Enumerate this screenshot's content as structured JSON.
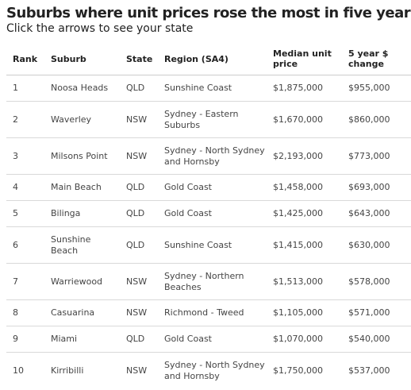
{
  "title": "Suburbs where unit prices rose the most in five years",
  "subtitle": "Click the arrows to see your state",
  "table": {
    "headers": {
      "rank": "Rank",
      "suburb": "Suburb",
      "state": "State",
      "region": "Region (SA4)",
      "price": "Median unit price",
      "change": "5 year $ change"
    },
    "rows": [
      {
        "rank": "1",
        "suburb": "Noosa Heads",
        "state": "QLD",
        "region": "Sunshine Coast",
        "price": "$1,875,000",
        "change": "$955,000"
      },
      {
        "rank": "2",
        "suburb": "Waverley",
        "state": "NSW",
        "region": "Sydney - Eastern Suburbs",
        "price": "$1,670,000",
        "change": "$860,000"
      },
      {
        "rank": "3",
        "suburb": "Milsons Point",
        "state": "NSW",
        "region": "Sydney - North Sydney and Hornsby",
        "price": "$2,193,000",
        "change": "$773,000"
      },
      {
        "rank": "4",
        "suburb": "Main Beach",
        "state": "QLD",
        "region": "Gold Coast",
        "price": "$1,458,000",
        "change": "$693,000"
      },
      {
        "rank": "5",
        "suburb": "Bilinga",
        "state": "QLD",
        "region": "Gold Coast",
        "price": "$1,425,000",
        "change": "$643,000"
      },
      {
        "rank": "6",
        "suburb": "Sunshine Beach",
        "state": "QLD",
        "region": "Sunshine Coast",
        "price": "$1,415,000",
        "change": "$630,000"
      },
      {
        "rank": "7",
        "suburb": "Warriewood",
        "state": "NSW",
        "region": "Sydney - Northern Beaches",
        "price": "$1,513,000",
        "change": "$578,000"
      },
      {
        "rank": "8",
        "suburb": "Casuarina",
        "state": "NSW",
        "region": "Richmond - Tweed",
        "price": "$1,105,000",
        "change": "$571,000"
      },
      {
        "rank": "9",
        "suburb": "Miami",
        "state": "QLD",
        "region": "Gold Coast",
        "price": "$1,070,000",
        "change": "$540,000"
      },
      {
        "rank": "10",
        "suburb": "Kirribilli",
        "state": "NSW",
        "region": "Sydney - North Sydney and Hornsby",
        "price": "$1,750,000",
        "change": "$537,000"
      }
    ]
  }
}
